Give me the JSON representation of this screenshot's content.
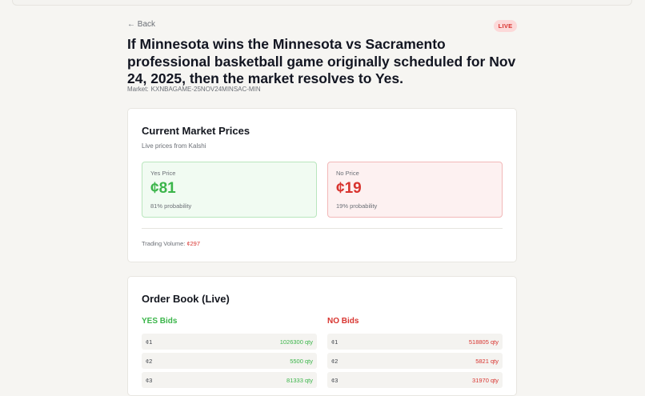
{
  "nav": {
    "back_label": "← Back"
  },
  "badge": {
    "live": "LIVE"
  },
  "market": {
    "title": "If Minnesota wins the Minnesota vs Sacramento professional basketball game originally scheduled for Nov 24, 2025, then the market resolves to Yes.",
    "id_label": "Market:",
    "id_value": "KXNBAGAME-25NOV24MINSAC-MIN"
  },
  "prices": {
    "heading": "Current Market Prices",
    "subtitle": "Live prices from Kalshi",
    "yes": {
      "label": "Yes Price",
      "value": "¢81",
      "probability": "81% probability"
    },
    "no": {
      "label": "No Price",
      "value": "¢19",
      "probability": "19% probability"
    },
    "volume_label": "Trading Volume:",
    "volume_value": "¢297"
  },
  "order_book": {
    "heading": "Order Book (Live)",
    "yes_heading": "YES Bids",
    "no_heading": "NO Bids",
    "yes_bids": [
      {
        "price": "¢1",
        "qty": "1026300 qty"
      },
      {
        "price": "¢2",
        "qty": "5500 qty"
      },
      {
        "price": "¢3",
        "qty": "81333 qty"
      }
    ],
    "no_bids": [
      {
        "price": "¢1",
        "qty": "518805 qty"
      },
      {
        "price": "¢2",
        "qty": "5821 qty"
      },
      {
        "price": "¢3",
        "qty": "31970 qty"
      }
    ]
  },
  "colors": {
    "yes": "#3bb54a",
    "no": "#d8342f",
    "live_badge_bg": "#fcd9d9"
  }
}
